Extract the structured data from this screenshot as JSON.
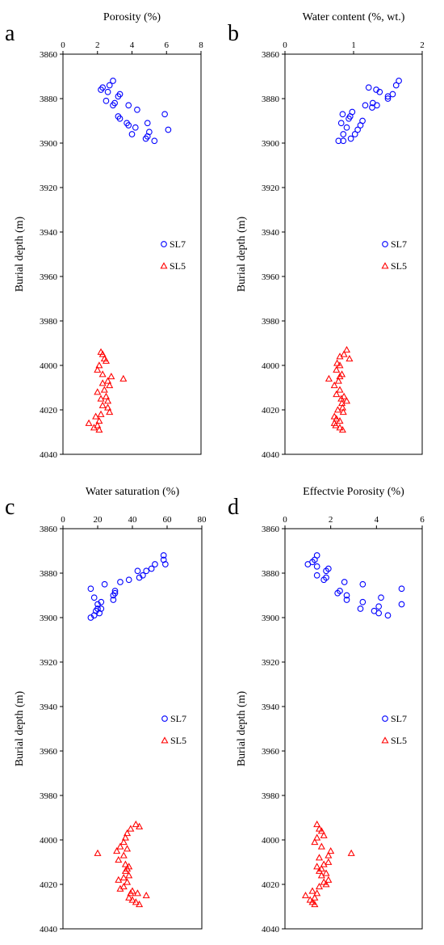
{
  "chart_data": [
    {
      "type": "scatter",
      "panel_label": "a",
      "title": "Porosity  (%)",
      "ylabel": "Burial depth (m)",
      "xlim": [
        0,
        8
      ],
      "xticks": [
        "0",
        "2",
        "4",
        "6",
        "8"
      ],
      "ylim": [
        3860,
        4040
      ],
      "y_inverted": true,
      "yticks": [
        "3860",
        "3880",
        "3900",
        "3920",
        "3940",
        "3960",
        "3980",
        "4000",
        "4020",
        "4040"
      ],
      "legend_position": "right-middle",
      "series": [
        {
          "name": "SL7",
          "marker": "circle",
          "color": "#0000ff",
          "points": [
            [
              2.9,
              3872
            ],
            [
              2.7,
              3874
            ],
            [
              2.3,
              3875
            ],
            [
              2.2,
              3876
            ],
            [
              2.6,
              3877
            ],
            [
              3.3,
              3878
            ],
            [
              3.2,
              3879
            ],
            [
              2.5,
              3881
            ],
            [
              3.0,
              3882
            ],
            [
              2.9,
              3883
            ],
            [
              3.8,
              3883
            ],
            [
              4.3,
              3885
            ],
            [
              5.9,
              3887
            ],
            [
              3.2,
              3888
            ],
            [
              3.3,
              3889
            ],
            [
              3.7,
              3891
            ],
            [
              4.9,
              3891
            ],
            [
              3.8,
              3892
            ],
            [
              4.2,
              3893
            ],
            [
              6.1,
              3894
            ],
            [
              5.0,
              3895
            ],
            [
              4.0,
              3896
            ],
            [
              4.9,
              3897
            ],
            [
              4.8,
              3898
            ],
            [
              5.3,
              3899
            ]
          ]
        },
        {
          "name": "SL5",
          "marker": "triangle",
          "color": "#ff0000",
          "points": [
            [
              2.2,
              3994
            ],
            [
              2.3,
              3995
            ],
            [
              2.4,
              3997
            ],
            [
              2.5,
              3998
            ],
            [
              2.1,
              4000
            ],
            [
              2.0,
              4002
            ],
            [
              2.3,
              4004
            ],
            [
              2.8,
              4005
            ],
            [
              3.5,
              4006
            ],
            [
              2.6,
              4007
            ],
            [
              2.3,
              4008
            ],
            [
              2.7,
              4009
            ],
            [
              2.4,
              4011
            ],
            [
              2.0,
              4012
            ],
            [
              2.5,
              4014
            ],
            [
              2.2,
              4015
            ],
            [
              2.6,
              4016
            ],
            [
              2.3,
              4018
            ],
            [
              2.6,
              4019
            ],
            [
              2.7,
              4021
            ],
            [
              2.2,
              4022
            ],
            [
              1.9,
              4023
            ],
            [
              2.1,
              4025
            ],
            [
              1.5,
              4026
            ],
            [
              2.0,
              4027
            ],
            [
              1.8,
              4028
            ],
            [
              2.1,
              4029
            ]
          ]
        }
      ]
    },
    {
      "type": "scatter",
      "panel_label": "b",
      "title": "Water content (%, wt.)",
      "ylabel": "Burial depth (m)",
      "xlim": [
        0,
        2
      ],
      "xticks": [
        "0",
        "1",
        "2"
      ],
      "ylim": [
        3860,
        4040
      ],
      "y_inverted": true,
      "yticks": [
        "3860",
        "3880",
        "3900",
        "3920",
        "3940",
        "3960",
        "3980",
        "4000",
        "4020",
        "4040"
      ],
      "legend_position": "right-middle",
      "series": [
        {
          "name": "SL7",
          "marker": "circle",
          "color": "#0000ff",
          "points": [
            [
              1.66,
              3872
            ],
            [
              1.62,
              3874
            ],
            [
              1.22,
              3875
            ],
            [
              1.33,
              3876
            ],
            [
              1.38,
              3877
            ],
            [
              1.57,
              3878
            ],
            [
              1.5,
              3879
            ],
            [
              1.5,
              3880
            ],
            [
              1.28,
              3882
            ],
            [
              1.17,
              3883
            ],
            [
              1.34,
              3883
            ],
            [
              1.27,
              3884
            ],
            [
              0.98,
              3886
            ],
            [
              0.84,
              3887
            ],
            [
              0.95,
              3888
            ],
            [
              1.13,
              3890
            ],
            [
              0.93,
              3889
            ],
            [
              0.82,
              3891
            ],
            [
              1.1,
              3892
            ],
            [
              0.9,
              3893
            ],
            [
              1.06,
              3894
            ],
            [
              1.02,
              3896
            ],
            [
              0.85,
              3896
            ],
            [
              0.96,
              3898
            ],
            [
              0.85,
              3899
            ],
            [
              0.78,
              3899
            ]
          ]
        },
        {
          "name": "SL5",
          "marker": "triangle",
          "color": "#ff0000",
          "points": [
            [
              0.9,
              3993
            ],
            [
              0.86,
              3995
            ],
            [
              0.8,
              3996
            ],
            [
              0.94,
              3997
            ],
            [
              0.76,
              3999
            ],
            [
              0.8,
              4000
            ],
            [
              0.75,
              4002
            ],
            [
              0.83,
              4004
            ],
            [
              0.8,
              4005
            ],
            [
              0.64,
              4006
            ],
            [
              0.78,
              4007
            ],
            [
              0.72,
              4009
            ],
            [
              0.8,
              4011
            ],
            [
              0.75,
              4013
            ],
            [
              0.86,
              4014
            ],
            [
              0.82,
              4015
            ],
            [
              0.9,
              4016
            ],
            [
              0.83,
              4017
            ],
            [
              0.84,
              4019
            ],
            [
              0.77,
              4020
            ],
            [
              0.85,
              4021
            ],
            [
              0.72,
              4023
            ],
            [
              0.75,
              4024
            ],
            [
              0.8,
              4025
            ],
            [
              0.72,
              4026
            ],
            [
              0.74,
              4027
            ],
            [
              0.8,
              4028
            ],
            [
              0.84,
              4029
            ]
          ]
        }
      ]
    },
    {
      "type": "scatter",
      "panel_label": "c",
      "title": "Water saturation  (%)",
      "ylabel": "Burial depth (m)",
      "xlim": [
        0,
        80
      ],
      "xticks": [
        "0",
        "20",
        "40",
        "60",
        "80"
      ],
      "ylim": [
        3860,
        4040
      ],
      "y_inverted": true,
      "yticks": [
        "3860",
        "3880",
        "3900",
        "3920",
        "3940",
        "3960",
        "3980",
        "4000",
        "4020",
        "4040"
      ],
      "legend_position": "right-middle",
      "series": [
        {
          "name": "SL7",
          "marker": "circle",
          "color": "#0000ff",
          "points": [
            [
              58,
              3872
            ],
            [
              58,
              3874
            ],
            [
              59,
              3876
            ],
            [
              53,
              3876
            ],
            [
              51,
              3878
            ],
            [
              48,
              3879
            ],
            [
              43,
              3879
            ],
            [
              46,
              3881
            ],
            [
              44,
              3882
            ],
            [
              38,
              3883
            ],
            [
              33,
              3884
            ],
            [
              24,
              3885
            ],
            [
              16,
              3887
            ],
            [
              30,
              3888
            ],
            [
              30,
              3889
            ],
            [
              29,
              3890
            ],
            [
              18,
              3891
            ],
            [
              29,
              3892
            ],
            [
              22,
              3893
            ],
            [
              20,
              3894
            ],
            [
              20,
              3896
            ],
            [
              22,
              3896
            ],
            [
              19,
              3897
            ],
            [
              21,
              3898
            ],
            [
              18,
              3899
            ],
            [
              16,
              3900
            ]
          ]
        },
        {
          "name": "SL5",
          "marker": "triangle",
          "color": "#ff0000",
          "points": [
            [
              42,
              3993
            ],
            [
              44,
              3994
            ],
            [
              39,
              3995
            ],
            [
              37,
              3997
            ],
            [
              36,
              3999
            ],
            [
              35,
              4001
            ],
            [
              33,
              4003
            ],
            [
              37,
              4004
            ],
            [
              31,
              4005
            ],
            [
              20,
              4006
            ],
            [
              35,
              4007
            ],
            [
              32,
              4009
            ],
            [
              36,
              4011
            ],
            [
              38,
              4012
            ],
            [
              37,
              4013
            ],
            [
              36,
              4014
            ],
            [
              38,
              4016
            ],
            [
              35,
              4017
            ],
            [
              32,
              4018
            ],
            [
              37,
              4019
            ],
            [
              35,
              4021
            ],
            [
              33,
              4022
            ],
            [
              40,
              4023
            ],
            [
              39,
              4024
            ],
            [
              43,
              4024
            ],
            [
              48,
              4025
            ],
            [
              38,
              4026
            ],
            [
              40,
              4027
            ],
            [
              42,
              4028
            ],
            [
              44,
              4029
            ]
          ]
        }
      ]
    },
    {
      "type": "scatter",
      "panel_label": "d",
      "title": "Effectvie Porosity  (%)",
      "ylabel": "Burial depth (m)",
      "xlim": [
        0,
        6
      ],
      "xticks": [
        "0",
        "2",
        "4",
        "6"
      ],
      "ylim": [
        3860,
        4040
      ],
      "y_inverted": true,
      "yticks": [
        "3860",
        "3880",
        "3900",
        "3920",
        "3940",
        "3960",
        "3980",
        "4000",
        "4020",
        "4040"
      ],
      "legend_position": "right-middle",
      "series": [
        {
          "name": "SL7",
          "marker": "circle",
          "color": "#0000ff",
          "points": [
            [
              1.4,
              3872
            ],
            [
              1.3,
              3874
            ],
            [
              1.2,
              3875
            ],
            [
              1.0,
              3876
            ],
            [
              1.4,
              3877
            ],
            [
              1.9,
              3878
            ],
            [
              1.8,
              3879
            ],
            [
              1.4,
              3881
            ],
            [
              1.8,
              3882
            ],
            [
              1.7,
              3883
            ],
            [
              2.6,
              3884
            ],
            [
              3.4,
              3885
            ],
            [
              5.1,
              3887
            ],
            [
              2.4,
              3888
            ],
            [
              2.3,
              3889
            ],
            [
              2.7,
              3890
            ],
            [
              4.2,
              3891
            ],
            [
              2.7,
              3892
            ],
            [
              3.4,
              3893
            ],
            [
              5.1,
              3894
            ],
            [
              4.1,
              3895
            ],
            [
              3.3,
              3896
            ],
            [
              3.9,
              3897
            ],
            [
              4.1,
              3898
            ],
            [
              4.5,
              3899
            ]
          ]
        },
        {
          "name": "SL5",
          "marker": "triangle",
          "color": "#ff0000",
          "points": [
            [
              1.4,
              3993
            ],
            [
              1.5,
              3995
            ],
            [
              1.6,
              3996
            ],
            [
              1.7,
              3998
            ],
            [
              1.4,
              3999
            ],
            [
              1.3,
              4001
            ],
            [
              1.6,
              4003
            ],
            [
              2.0,
              4005
            ],
            [
              2.9,
              4006
            ],
            [
              1.9,
              4007
            ],
            [
              1.5,
              4008
            ],
            [
              1.9,
              4010
            ],
            [
              1.7,
              4011
            ],
            [
              1.4,
              4012
            ],
            [
              1.6,
              4013
            ],
            [
              1.5,
              4014
            ],
            [
              1.8,
              4015
            ],
            [
              1.6,
              4016
            ],
            [
              1.9,
              4018
            ],
            [
              1.7,
              4019
            ],
            [
              1.8,
              4020
            ],
            [
              1.5,
              4021
            ],
            [
              1.2,
              4023
            ],
            [
              1.4,
              4024
            ],
            [
              0.9,
              4025
            ],
            [
              1.3,
              4026
            ],
            [
              1.1,
              4027
            ],
            [
              1.2,
              4028
            ],
            [
              1.3,
              4029
            ]
          ]
        }
      ]
    }
  ]
}
